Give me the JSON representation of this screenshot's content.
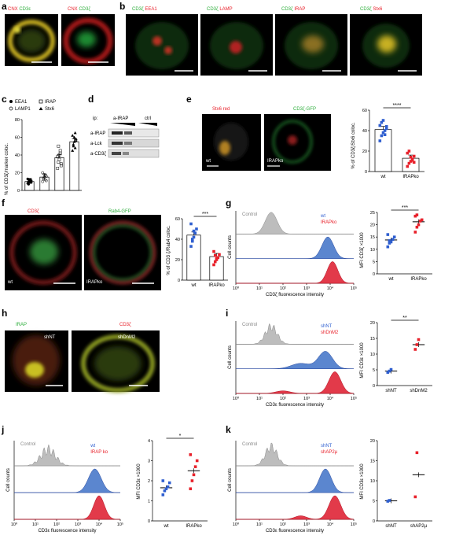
{
  "colors": {
    "red": "#e8202a",
    "green": "#2eae3c",
    "yellow": "#f5e84a",
    "blue": "#2f5fd0",
    "blue_fill": "#5b86cf",
    "red_fill": "#e23a4a",
    "grey_fill": "#bdbdbd"
  },
  "panels": {
    "a": {
      "letter": "a",
      "img1_label_red": "CNX",
      "img1_label_green": "CD3ε",
      "img2_label_red": "CNX",
      "img2_label_green": "CD3ζ"
    },
    "b": {
      "letter": "b",
      "labels": [
        {
          "green": "CD3ζ",
          "red": "EEA1"
        },
        {
          "green": "CD3ζ",
          "red": "LAMP"
        },
        {
          "green": "CD3ζ",
          "red": "IRAP"
        },
        {
          "green": "CD3ζ",
          "red": "Stx6"
        }
      ]
    },
    "c": {
      "letter": "c",
      "ylabel": "% of CD3ζ/marker coloc.",
      "legend": [
        "EEA1",
        "LAMP1",
        "IRAP",
        "Stx6"
      ],
      "yticks": [
        "0",
        "20",
        "40",
        "60",
        "80"
      ]
    },
    "d": {
      "letter": "d",
      "ip_label": "ip:",
      "col1": "a-IRAP",
      "col2": "ctrl",
      "rows": [
        "a-IRAP",
        "a-Lck",
        "a-CD3ζ"
      ]
    },
    "e": {
      "letter": "e",
      "img1_label": "Stx6 red",
      "img2_label": "CD3ζ-GFP",
      "img1_tag": "wt",
      "img2_tag": "IRAPko",
      "ylabel": "% of CD3ζ/Stx6 coloc.",
      "sig": "****",
      "categories": [
        "wt",
        "IRAPko"
      ],
      "yticks": [
        "0",
        "20",
        "40",
        "60"
      ]
    },
    "f": {
      "letter": "f",
      "img1_label": "CD3ζ",
      "img2_label": "Rab4-GFP",
      "img1_tag": "wt",
      "img2_tag": "IRAPko",
      "ylabel": "% of CD3 ζ/Rab4 coloc.",
      "sig": "***",
      "categories": [
        "wt",
        "IRAPko"
      ],
      "yticks": [
        "0",
        "20",
        "40",
        "60"
      ]
    },
    "g": {
      "letter": "g",
      "hist_ylabel": "Cell counts",
      "hist_xlabel": "CD3ζ fluorescence intensity",
      "legend": [
        "Control",
        "wt",
        "IRAPko"
      ],
      "ylabel": "MFI CD3ζ ×1000",
      "sig": "***",
      "categories": [
        "wt",
        "IRAPko"
      ],
      "yticks": [
        "0",
        "5",
        "10",
        "15",
        "20",
        "25"
      ]
    },
    "h": {
      "letter": "h",
      "img_label_green": "IRAP",
      "img_label_red": "CD3ζ",
      "img1_tag": "shNT",
      "img2_tag": "shDnM2"
    },
    "i": {
      "letter": "i",
      "hist_ylabel": "Cell counts",
      "hist_xlabel": "CD3ε fluorescence intensity",
      "legend": [
        "Control",
        "shNT",
        "shDnM2"
      ],
      "ylabel": "MFI CD3ε ×1000",
      "sig": "**",
      "categories": [
        "shNT",
        "shDnM2"
      ],
      "yticks": [
        "0",
        "5",
        "10",
        "15",
        "20"
      ]
    },
    "j": {
      "letter": "j",
      "hist_ylabel": "Cell counts",
      "hist_xlabel": "CD3ε fluorescence intensity",
      "legend": [
        "Control",
        "wt",
        "IRAP ko"
      ],
      "ylabel": "MFI CD3ε ×1000",
      "sig": "*",
      "categories": [
        "wt",
        "IRAPko"
      ],
      "yticks": [
        "0",
        "1",
        "2",
        "3",
        "4"
      ]
    },
    "k": {
      "letter": "k",
      "hist_ylabel": "Cell counts",
      "hist_xlabel": "CD3ε fluorescence intensity",
      "legend": [
        "Control",
        "shNT",
        "shAP2µ"
      ],
      "ylabel": "MFI CD3ε ×1000",
      "categories": [
        "shNT",
        "shAP2µ"
      ],
      "yticks": [
        "0",
        "5",
        "10",
        "15",
        "20"
      ]
    },
    "hist_xticks": [
      "10⁰",
      "10¹",
      "10²",
      "10³",
      "10⁴",
      "10⁵"
    ]
  },
  "chart_data": [
    {
      "panel": "c",
      "type": "bar",
      "categories": [
        "EEA1",
        "LAMP1",
        "IRAP",
        "Stx6"
      ],
      "values": [
        10,
        15,
        37,
        55
      ],
      "ylim": [
        0,
        80
      ],
      "points": [
        [
          8,
          10,
          12,
          9,
          11,
          13,
          7,
          10,
          12,
          9
        ],
        [
          10,
          14,
          18,
          12,
          16,
          20,
          13,
          15,
          17,
          11
        ],
        [
          25,
          32,
          40,
          45,
          30,
          38,
          50,
          35,
          42,
          28
        ],
        [
          45,
          52,
          60,
          48,
          58,
          62,
          50,
          55,
          65,
          56
        ]
      ]
    },
    {
      "panel": "e",
      "type": "bar",
      "categories": [
        "wt",
        "IRAPko"
      ],
      "values": [
        41,
        13
      ],
      "ylim": [
        0,
        60
      ],
      "points": [
        [
          30,
          35,
          38,
          40,
          42,
          45,
          48,
          50,
          36,
          44
        ],
        [
          5,
          8,
          10,
          12,
          15,
          18,
          20,
          14,
          11,
          9
        ]
      ]
    },
    {
      "panel": "f",
      "type": "bar",
      "categories": [
        "wt",
        "IRAPko"
      ],
      "values": [
        44,
        23
      ],
      "ylim": [
        0,
        60
      ],
      "points": [
        [
          33,
          38,
          42,
          46,
          50,
          55,
          40,
          48
        ],
        [
          15,
          18,
          20,
          22,
          25,
          28,
          24,
          21
        ]
      ]
    },
    {
      "panel": "g",
      "type": "scatter",
      "categories": [
        "wt",
        "IRAPko"
      ],
      "means": [
        13.8,
        21.2
      ],
      "ylim": [
        0,
        25
      ],
      "points": [
        [
          11,
          12.5,
          13,
          14,
          15,
          16,
          13.5
        ],
        [
          17,
          19,
          20,
          21.5,
          22,
          23.5,
          24
        ]
      ]
    },
    {
      "panel": "i",
      "type": "scatter",
      "categories": [
        "shNT",
        "shDnM2"
      ],
      "means": [
        4.6,
        13
      ],
      "ylim": [
        0,
        20
      ],
      "points": [
        [
          4.2,
          4.6,
          5.1
        ],
        [
          11.5,
          13,
          14.6
        ]
      ]
    },
    {
      "panel": "j",
      "type": "scatter",
      "categories": [
        "wt",
        "IRAPko"
      ],
      "means": [
        1.65,
        2.5
      ],
      "ylim": [
        0,
        4
      ],
      "points": [
        [
          1.3,
          1.5,
          1.6,
          1.7,
          1.9,
          2.0
        ],
        [
          1.6,
          2.0,
          2.3,
          2.7,
          3.0,
          3.3
        ]
      ]
    },
    {
      "panel": "k",
      "type": "scatter",
      "categories": [
        "shNT",
        "shAP2µ"
      ],
      "means": [
        5,
        11.5
      ],
      "ylim": [
        0,
        20
      ],
      "points": [
        [
          4.9,
          5.1
        ],
        [
          6,
          17
        ]
      ]
    }
  ]
}
